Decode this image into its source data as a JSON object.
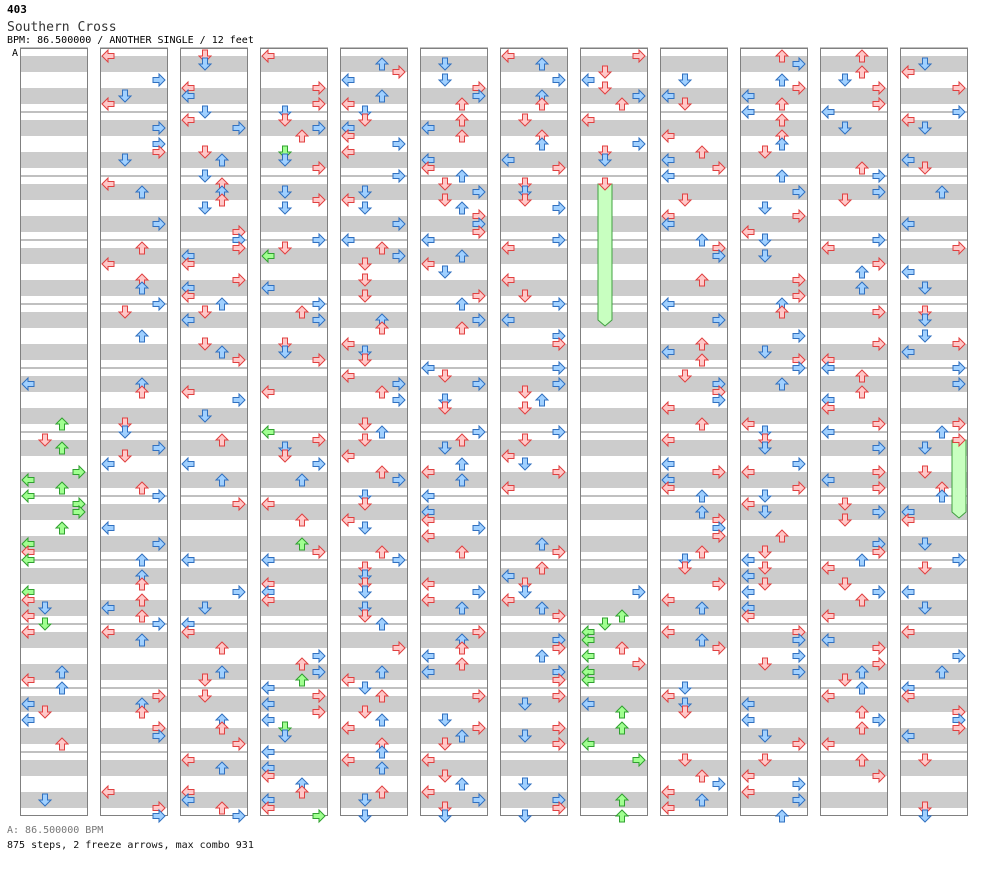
{
  "header": {
    "id": "403",
    "title": "Southern Cross",
    "info": "BPM: 86.500000 / ANOTHER SINGLE / 12 feet",
    "marker": "A"
  },
  "footer": {
    "bpm_line": "A: 86.500000 BPM",
    "stats_line": "875 steps, 2 freeze arrows, max combo 931"
  },
  "colors": {
    "quarter_fill": "#ffc8c8",
    "quarter_stroke": "#e04040",
    "eighth_fill": "#a0d0ff",
    "eighth_stroke": "#3070c0",
    "sixteenth_fill": "#a0ff90",
    "sixteenth_stroke": "#30a030",
    "freeze_fill": "#c8ffc0",
    "freeze_stroke": "#40a040",
    "band": "#cccccc",
    "border": "#808080"
  },
  "chart_data": {
    "type": "step_chart",
    "lanes": [
      "left",
      "down",
      "up",
      "right"
    ],
    "measures_per_column": 12,
    "columns": 12,
    "note_colors": [
      "quarter",
      "eighth",
      "sixteenth"
    ],
    "freeze_arrows": [
      {
        "column": 8,
        "lane": "down",
        "start_measure": 3,
        "start_row": 0,
        "end_measure": 5,
        "end_row": 0
      },
      {
        "column": 12,
        "lane": "right",
        "start_measure": 7,
        "start_row": 0,
        "end_measure": 8,
        "end_row": 0
      }
    ],
    "column_first_measure": [
      1,
      2,
      3,
      4,
      5,
      6,
      7,
      8,
      9,
      10,
      11,
      12
    ]
  }
}
